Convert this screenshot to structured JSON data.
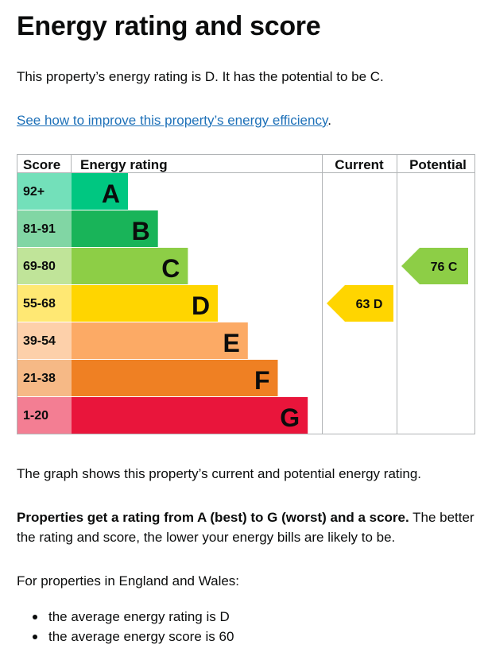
{
  "heading": "Energy rating and score",
  "summary": "This property’s energy rating is D. It has the potential to be C.",
  "improve_link": "See how to improve this property’s energy efficiency",
  "improve_link_suffix": ".",
  "chart_data": {
    "type": "table",
    "headers": [
      "Score",
      "Energy rating",
      "Current",
      "Potential"
    ],
    "bands": [
      {
        "range": "92+",
        "letter": "A",
        "color": "#00c781"
      },
      {
        "range": "81-91",
        "letter": "B",
        "color": "#19b459"
      },
      {
        "range": "69-80",
        "letter": "C",
        "color": "#8dce46"
      },
      {
        "range": "55-68",
        "letter": "D",
        "color": "#ffd500"
      },
      {
        "range": "39-54",
        "letter": "E",
        "color": "#fcaa65"
      },
      {
        "range": "21-38",
        "letter": "F",
        "color": "#ef8023"
      },
      {
        "range": "1-20",
        "letter": "G",
        "color": "#e9153b"
      }
    ],
    "current": {
      "score": 63,
      "letter": "D",
      "label": "63  D"
    },
    "potential": {
      "score": 76,
      "letter": "C",
      "label": "76  C"
    }
  },
  "graph_note": "The graph shows this property’s current and potential energy rating.",
  "rating_bold": "Properties get a rating from A (best) to G (worst) and a score.",
  "rating_rest": " The better the rating and score, the lower your energy bills are likely to be.",
  "england_wales": "For properties in England and Wales:",
  "averages": [
    "the average energy rating is D",
    "the average energy score is 60"
  ]
}
